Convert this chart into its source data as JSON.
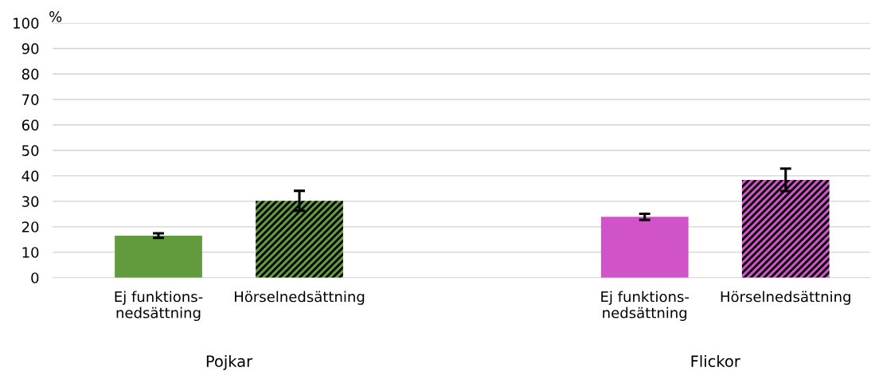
{
  "chart_data": {
    "type": "bar",
    "ylabel": "%",
    "categories": [
      "Ej funktions-\nnedsättning",
      "Hörselnedsättning",
      "Ej funktions-\nnedsättning",
      "Hörselnedsättning"
    ],
    "values": [
      16.5,
      30.2,
      23.9,
      38.4
    ],
    "errors": [
      0.9,
      3.9,
      1.2,
      4.4
    ],
    "colors": [
      "#629b3e",
      "#629b3e",
      "#d054c8",
      "#d054c8"
    ],
    "ylim": [
      0,
      100
    ],
    "yticks": [
      0,
      10,
      20,
      30,
      40,
      50,
      60,
      70,
      80,
      90,
      100
    ],
    "grid": "y",
    "annotations": [
      "Pojkar",
      "Flickor"
    ]
  }
}
